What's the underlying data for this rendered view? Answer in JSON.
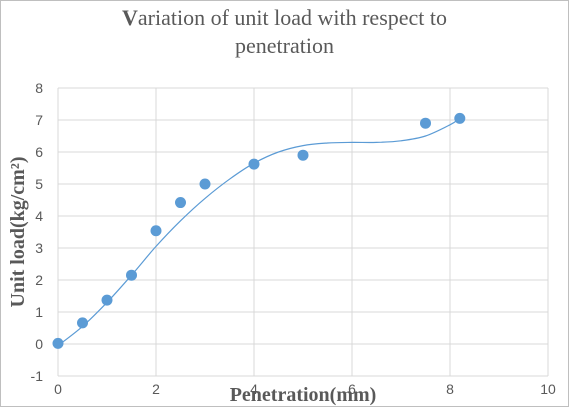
{
  "chart_data": {
    "type": "scatter",
    "title": "Variation of unit load with respect to penetration",
    "title_lines": [
      "Variation of unit load with respect to",
      "penetration"
    ],
    "xlabel": "Penetration(mm)",
    "ylabel": "Unit load(kg/cm²)",
    "xlim": [
      0,
      10
    ],
    "ylim": [
      -1,
      8
    ],
    "xticks": [
      0,
      2,
      4,
      6,
      8,
      10
    ],
    "yticks": [
      -1,
      0,
      1,
      2,
      3,
      4,
      5,
      6,
      7,
      8
    ],
    "grid": true,
    "legend": "none",
    "series": [
      {
        "x": [
          0,
          0.5,
          1.0,
          1.5,
          2.0,
          2.5,
          3.0,
          4.0,
          5.0,
          7.5,
          8.2
        ],
        "y": [
          0.02,
          0.66,
          1.37,
          2.15,
          3.54,
          4.42,
          5.0,
          5.62,
          5.9,
          6.9,
          7.05
        ],
        "color": "#5b9bd5"
      }
    ],
    "trendline": {
      "type": "polynomial",
      "color": "#5b9bd5",
      "x": [
        0,
        0.5,
        1,
        1.5,
        2,
        2.5,
        3,
        3.5,
        4,
        4.5,
        5,
        5.5,
        6,
        6.5,
        7,
        7.5,
        8,
        8.2
      ],
      "y": [
        -0.05,
        0.55,
        1.3,
        2.15,
        3.05,
        3.85,
        4.55,
        5.15,
        5.65,
        6.0,
        6.2,
        6.28,
        6.3,
        6.3,
        6.35,
        6.5,
        6.85,
        7.05
      ]
    }
  }
}
